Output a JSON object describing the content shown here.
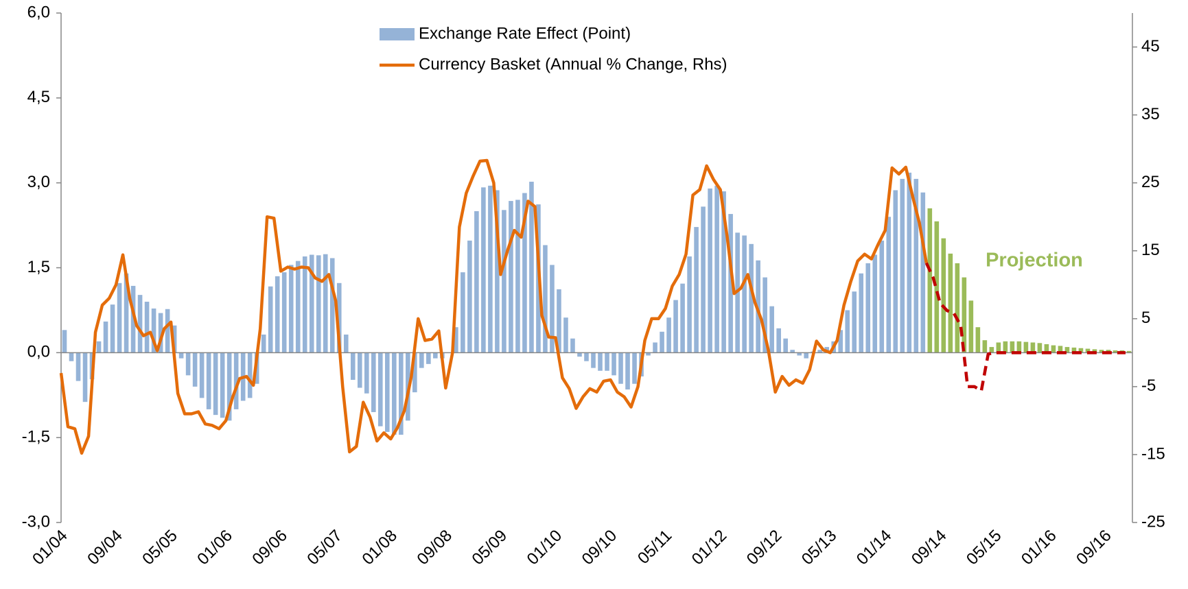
{
  "chart_data": {
    "type": "bar",
    "categories": [
      "01/04",
      null,
      null,
      null,
      null,
      null,
      null,
      null,
      "09/04",
      null,
      null,
      null,
      null,
      null,
      null,
      null,
      "05/05",
      null,
      null,
      null,
      null,
      null,
      null,
      null,
      "01/06",
      null,
      null,
      null,
      null,
      null,
      null,
      null,
      "09/06",
      null,
      null,
      null,
      null,
      null,
      null,
      null,
      "05/07",
      null,
      null,
      null,
      null,
      null,
      null,
      null,
      "01/08",
      null,
      null,
      null,
      null,
      null,
      null,
      null,
      "09/08",
      null,
      null,
      null,
      null,
      null,
      null,
      null,
      "05/09",
      null,
      null,
      null,
      null,
      null,
      null,
      null,
      "01/10",
      null,
      null,
      null,
      null,
      null,
      null,
      null,
      "09/10",
      null,
      null,
      null,
      null,
      null,
      null,
      null,
      "05/11",
      null,
      null,
      null,
      null,
      null,
      null,
      null,
      "01/12",
      null,
      null,
      null,
      null,
      null,
      null,
      null,
      "09/12",
      null,
      null,
      null,
      null,
      null,
      null,
      null,
      "05/13",
      null,
      null,
      null,
      null,
      null,
      null,
      null,
      "01/14",
      null,
      null,
      null,
      null,
      null,
      null,
      null,
      "09/14",
      null,
      null,
      null,
      null,
      null,
      null,
      null,
      "05/15",
      null,
      null,
      null,
      null,
      null,
      null,
      null,
      "01/16",
      null,
      null,
      null,
      null,
      null,
      null,
      null,
      "09/16",
      null,
      null,
      null
    ],
    "ylim": [
      -3,
      6
    ],
    "yticks": [
      {
        "value": -3,
        "label": "-3,0"
      },
      {
        "value": -1.5,
        "label": "-1,5"
      },
      {
        "value": 0,
        "label": "0,0"
      },
      {
        "value": 1.5,
        "label": "1,5"
      },
      {
        "value": 3,
        "label": "3,0"
      },
      {
        "value": 4.5,
        "label": "4,5"
      },
      {
        "value": 6,
        "label": "6,0"
      }
    ],
    "y2lim": [
      -25,
      50
    ],
    "y2ticks": [
      -25,
      -15,
      -5,
      5,
      15,
      25,
      35,
      45
    ],
    "legend": "top",
    "annotations": [
      {
        "text": "Projection",
        "color": "#9bbb59"
      }
    ],
    "series": [
      {
        "name": "Exchange Rate Effect (Point)",
        "type": "bar",
        "color": "#95b3d7",
        "values": [
          0.4,
          -0.15,
          -0.5,
          -0.87,
          -0.47,
          0.2,
          0.55,
          0.85,
          1.23,
          1.4,
          1.18,
          1.02,
          0.9,
          0.78,
          0.7,
          0.77,
          0.48,
          -0.1,
          -0.4,
          -0.6,
          -0.8,
          -1.0,
          -1.1,
          -1.15,
          -1.2,
          -1.0,
          -0.85,
          -0.8,
          -0.55,
          0.32,
          1.17,
          1.35,
          1.42,
          1.55,
          1.62,
          1.7,
          1.73,
          1.72,
          1.74,
          1.67,
          1.23,
          0.32,
          -0.48,
          -0.62,
          -0.72,
          -1.05,
          -1.3,
          -1.4,
          -1.45,
          -1.45,
          -1.2,
          -0.7,
          -0.27,
          -0.2,
          -0.1,
          -0.1,
          0.0,
          0.45,
          1.42,
          1.98,
          2.5,
          2.92,
          2.95,
          2.87,
          2.52,
          2.68,
          2.7,
          2.82,
          3.02,
          2.62,
          1.9,
          1.55,
          1.12,
          0.62,
          0.25,
          -0.07,
          -0.15,
          -0.27,
          -0.32,
          -0.32,
          -0.4,
          -0.55,
          -0.65,
          -0.55,
          -0.42,
          -0.05,
          0.18,
          0.37,
          0.62,
          0.93,
          1.22,
          1.7,
          2.22,
          2.58,
          2.9,
          2.95,
          2.85,
          2.45,
          2.12,
          2.07,
          1.92,
          1.63,
          1.33,
          0.82,
          0.43,
          0.25,
          0.05,
          -0.05,
          -0.1,
          0.02,
          0.05,
          0.1,
          0.2,
          0.4,
          0.75,
          1.08,
          1.4,
          1.58,
          1.73,
          1.98,
          2.4,
          2.87,
          3.07,
          3.18,
          3.07,
          2.83,
          null,
          null,
          null,
          null,
          null,
          null,
          null,
          null,
          null,
          null,
          null,
          null,
          null,
          null,
          null,
          null,
          null,
          null,
          null,
          null,
          null,
          null,
          null,
          null,
          null,
          null,
          null,
          null,
          null,
          null
        ]
      },
      {
        "type": "bar",
        "color": "#9bbb59",
        "values": [
          null,
          null,
          null,
          null,
          null,
          null,
          null,
          null,
          null,
          null,
          null,
          null,
          null,
          null,
          null,
          null,
          null,
          null,
          null,
          null,
          null,
          null,
          null,
          null,
          null,
          null,
          null,
          null,
          null,
          null,
          null,
          null,
          null,
          null,
          null,
          null,
          null,
          null,
          null,
          null,
          null,
          null,
          null,
          null,
          null,
          null,
          null,
          null,
          null,
          null,
          null,
          null,
          null,
          null,
          null,
          null,
          null,
          null,
          null,
          null,
          null,
          null,
          null,
          null,
          null,
          null,
          null,
          null,
          null,
          null,
          null,
          null,
          null,
          null,
          null,
          null,
          null,
          null,
          null,
          null,
          null,
          null,
          null,
          null,
          null,
          null,
          null,
          null,
          null,
          null,
          null,
          null,
          null,
          null,
          null,
          null,
          null,
          null,
          null,
          null,
          null,
          null,
          null,
          null,
          null,
          null,
          null,
          null,
          null,
          null,
          null,
          null,
          null,
          null,
          null,
          null,
          null,
          null,
          null,
          null,
          null,
          null,
          null,
          null,
          null,
          null,
          2.55,
          2.32,
          2.02,
          1.75,
          1.58,
          1.33,
          0.92,
          0.45,
          0.22,
          0.1,
          0.18,
          0.2,
          0.2,
          0.2,
          0.19,
          0.18,
          0.17,
          0.15,
          0.13,
          0.12,
          0.1,
          0.09,
          0.08,
          0.07,
          0.06,
          0.05,
          0.05,
          0.04,
          0.04,
          0.03
        ]
      },
      {
        "name": "Currency Basket (Annual % Change, Rhs)",
        "type": "line",
        "axis": "y2",
        "color": "#e46c0a",
        "values": [
          -3,
          -10.9,
          -11.2,
          -14.8,
          -12.3,
          3,
          7,
          8,
          10,
          14.4,
          8,
          4,
          2.5,
          3,
          0.3,
          3.5,
          4.5,
          -6,
          -9,
          -9,
          -8.7,
          -10.5,
          -10.7,
          -11.2,
          -10,
          -6.5,
          -3.8,
          -3.5,
          -4.8,
          3.5,
          20,
          19.8,
          12,
          12.6,
          12.3,
          12.6,
          12.5,
          11,
          10.5,
          11.5,
          7.6,
          -5,
          -14.6,
          -13.8,
          -7.3,
          -9.5,
          -13,
          -11.8,
          -12.7,
          -11,
          -8.5,
          -3.5,
          5,
          1.8,
          2,
          3.2,
          -5.2,
          0,
          18.5,
          23.5,
          26,
          28.2,
          28.3,
          25,
          11.5,
          15,
          18,
          17,
          22.3,
          21.5,
          5.5,
          2.3,
          2.2,
          -3.7,
          -5.3,
          -8.2,
          -6.5,
          -5.3,
          -5.8,
          -4.2,
          -4,
          -5.8,
          -6.5,
          -8,
          -5,
          1.8,
          5,
          5,
          6.5,
          9.8,
          11.5,
          14.5,
          23.2,
          24,
          27.5,
          25.5,
          24,
          17,
          8.7,
          9.5,
          11.5,
          7.5,
          4.8,
          0.3,
          -5.8,
          -3.5,
          -4.8,
          -4,
          -4.5,
          -2.5,
          1.7,
          0.4,
          0,
          1.8,
          7,
          10.5,
          13.5,
          14.5,
          13.8,
          16,
          18,
          27.2,
          26.3,
          27.3,
          23,
          19,
          13.2,
          null,
          null,
          null,
          null,
          null,
          null,
          null,
          null,
          null,
          null,
          null,
          null,
          null,
          null,
          null,
          null,
          null,
          null,
          null,
          null,
          null,
          null,
          null,
          null,
          null,
          null,
          null,
          null,
          null
        ]
      },
      {
        "type": "line",
        "axis": "y2",
        "color": "#c00000",
        "dashed": true,
        "values": [
          null,
          null,
          null,
          null,
          null,
          null,
          null,
          null,
          null,
          null,
          null,
          null,
          null,
          null,
          null,
          null,
          null,
          null,
          null,
          null,
          null,
          null,
          null,
          null,
          null,
          null,
          null,
          null,
          null,
          null,
          null,
          null,
          null,
          null,
          null,
          null,
          null,
          null,
          null,
          null,
          null,
          null,
          null,
          null,
          null,
          null,
          null,
          null,
          null,
          null,
          null,
          null,
          null,
          null,
          null,
          null,
          null,
          null,
          null,
          null,
          null,
          null,
          null,
          null,
          null,
          null,
          null,
          null,
          null,
          null,
          null,
          null,
          null,
          null,
          null,
          null,
          null,
          null,
          null,
          null,
          null,
          null,
          null,
          null,
          null,
          null,
          null,
          null,
          null,
          null,
          null,
          null,
          null,
          null,
          null,
          null,
          null,
          null,
          null,
          null,
          null,
          null,
          null,
          null,
          null,
          null,
          null,
          null,
          null,
          null,
          null,
          null,
          null,
          null,
          null,
          null,
          null,
          null,
          null,
          null,
          null,
          null,
          null,
          null,
          null,
          null,
          13.2,
          11,
          7.3,
          6.2,
          5.8,
          4,
          -5,
          -5,
          -5.6,
          -0.2,
          0,
          0,
          0,
          0,
          0,
          0,
          0,
          0,
          0,
          0,
          0,
          0,
          0,
          0,
          0,
          0,
          0,
          0,
          0,
          0
        ]
      }
    ]
  }
}
